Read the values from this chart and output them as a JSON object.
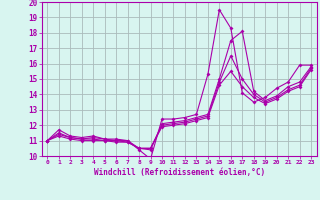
{
  "xlabel": "Windchill (Refroidissement éolien,°C)",
  "xlim": [
    -0.5,
    23.5
  ],
  "ylim": [
    10,
    20
  ],
  "yticks": [
    10,
    11,
    12,
    13,
    14,
    15,
    16,
    17,
    18,
    19,
    20
  ],
  "xticks": [
    0,
    1,
    2,
    3,
    4,
    5,
    6,
    7,
    8,
    9,
    10,
    11,
    12,
    13,
    14,
    15,
    16,
    17,
    18,
    19,
    20,
    21,
    22,
    23
  ],
  "bg_color": "#d8f5f0",
  "grid_color": "#aabbbb",
  "line_color": "#aa00aa",
  "series": [
    [
      11.0,
      11.7,
      11.3,
      11.2,
      11.3,
      11.1,
      11.1,
      11.0,
      10.4,
      9.8,
      12.4,
      12.4,
      12.5,
      12.7,
      15.3,
      19.5,
      18.3,
      14.1,
      13.5,
      13.8,
      14.4,
      14.8,
      15.9,
      15.9
    ],
    [
      11.0,
      11.5,
      11.2,
      11.1,
      11.2,
      11.1,
      11.0,
      11.0,
      10.5,
      10.4,
      12.1,
      12.2,
      12.3,
      12.5,
      12.7,
      15.0,
      17.5,
      18.1,
      14.2,
      13.6,
      13.9,
      14.5,
      14.8,
      15.8
    ],
    [
      11.0,
      11.4,
      11.2,
      11.1,
      11.1,
      11.0,
      11.0,
      10.9,
      10.5,
      10.5,
      12.0,
      12.1,
      12.2,
      12.4,
      12.6,
      14.8,
      16.5,
      15.0,
      14.0,
      13.5,
      13.8,
      14.3,
      14.6,
      15.7
    ],
    [
      11.0,
      11.3,
      11.1,
      11.0,
      11.0,
      11.0,
      10.9,
      10.9,
      10.5,
      10.5,
      11.9,
      12.0,
      12.1,
      12.3,
      12.5,
      14.6,
      15.5,
      14.5,
      13.8,
      13.4,
      13.7,
      14.2,
      14.5,
      15.6
    ]
  ]
}
